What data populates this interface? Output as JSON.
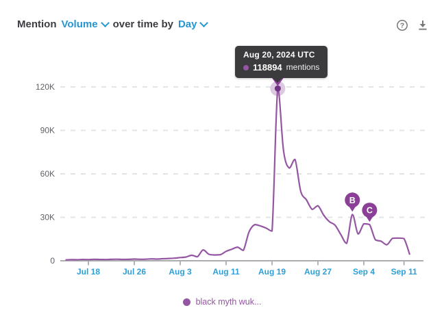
{
  "header": {
    "prefix": "Mention",
    "metric": "Volume",
    "middle": "over time by",
    "interval": "Day"
  },
  "toolbar": {
    "help_glyph": "?"
  },
  "tooltip": {
    "date": "Aug 20, 2024 UTC",
    "value": "118894",
    "suffix": "mentions"
  },
  "legend": {
    "label": "black myth wuk..."
  },
  "colors": {
    "accent_blue": "#2696d3",
    "axis_label_blue": "#2d9fd8",
    "series_purple": "#9455a2",
    "pin_purple": "#8b3f97",
    "point_purple": "#6f3382",
    "tooltip_bg": "#3b3b3d",
    "gridline": "#e2e4e9",
    "axis_line": "#aaacb0",
    "y_label_gray": "#5f6066",
    "icon_gray": "#76767b"
  },
  "chart_data": {
    "type": "line",
    "title": "Mention Volume over time by Day",
    "xlabel": "",
    "ylabel": "mentions",
    "ylim": [
      0,
      127000
    ],
    "grid": "horizontal-dashed",
    "legend_position": "bottom-center",
    "y_ticks": [
      0,
      30000,
      60000,
      90000,
      120000
    ],
    "y_tick_labels": [
      "0",
      "30K",
      "60K",
      "90K",
      "120K"
    ],
    "x_tick_labels": [
      "Jul 18",
      "Jul 26",
      "Aug 3",
      "Aug 11",
      "Aug 19",
      "Aug 27",
      "Sep 4",
      "Sep 11"
    ],
    "series": [
      {
        "name": "black myth wuk...",
        "x": [
          "Jul 14",
          "Jul 15",
          "Jul 16",
          "Jul 17",
          "Jul 18",
          "Jul 19",
          "Jul 20",
          "Jul 21",
          "Jul 22",
          "Jul 23",
          "Jul 24",
          "Jul 25",
          "Jul 26",
          "Jul 27",
          "Jul 28",
          "Jul 29",
          "Jul 30",
          "Jul 31",
          "Aug 1",
          "Aug 2",
          "Aug 3",
          "Aug 4",
          "Aug 5",
          "Aug 6",
          "Aug 7",
          "Aug 8",
          "Aug 9",
          "Aug 10",
          "Aug 11",
          "Aug 12",
          "Aug 13",
          "Aug 14",
          "Aug 15",
          "Aug 16",
          "Aug 17",
          "Aug 18",
          "Aug 19",
          "Aug 20",
          "Aug 21",
          "Aug 22",
          "Aug 23",
          "Aug 24",
          "Aug 25",
          "Aug 26",
          "Aug 27",
          "Aug 28",
          "Aug 29",
          "Aug 30",
          "Aug 31",
          "Sep 1",
          "Sep 2",
          "Sep 3",
          "Sep 4",
          "Sep 5",
          "Sep 6",
          "Sep 7",
          "Sep 8",
          "Sep 9",
          "Sep 10",
          "Sep 11",
          "Sep 12"
        ],
        "values": [
          600,
          800,
          700,
          900,
          800,
          1000,
          900,
          850,
          1000,
          1100,
          950,
          1000,
          1200,
          1050,
          1100,
          1300,
          1200,
          1400,
          1600,
          1800,
          2200,
          2600,
          3800,
          2800,
          7500,
          4500,
          4000,
          4200,
          6500,
          8000,
          9400,
          7200,
          20000,
          25000,
          24000,
          22500,
          20500,
          118894,
          76000,
          64000,
          70000,
          48000,
          42000,
          35500,
          38000,
          31500,
          27000,
          24500,
          18000,
          12000,
          32000,
          18500,
          25500,
          25000,
          14500,
          13500,
          11000,
          15500,
          15700,
          15300,
          4200
        ]
      }
    ],
    "highlight": {
      "date": "Aug 20",
      "value": 118894
    },
    "annotations": [
      {
        "label": "B",
        "date": "Sep 2",
        "value": 32000
      },
      {
        "label": "C",
        "date": "Sep 5",
        "value": 25000
      }
    ]
  }
}
